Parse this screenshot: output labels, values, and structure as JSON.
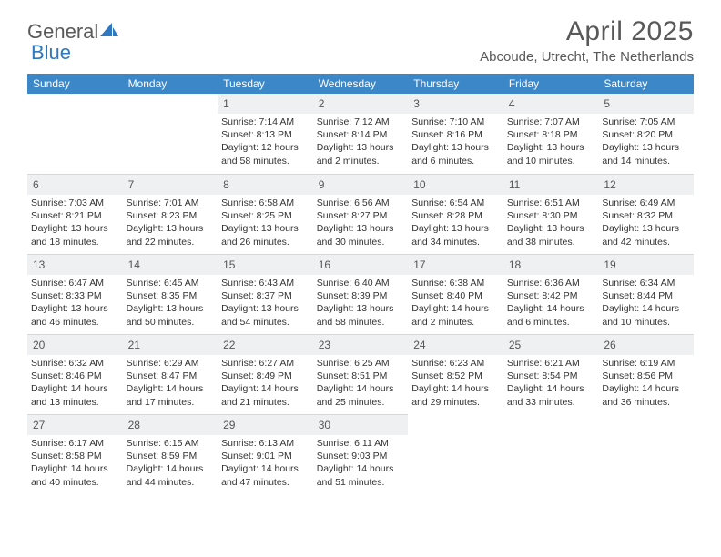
{
  "brand": {
    "text_general": "General",
    "text_blue": "Blue"
  },
  "title": "April 2025",
  "location": "Abcoude, Utrecht, The Netherlands",
  "header_bg": "#3c87c7",
  "daynum_bg": "#eef0f2",
  "weekdays": [
    "Sunday",
    "Monday",
    "Tuesday",
    "Wednesday",
    "Thursday",
    "Friday",
    "Saturday"
  ],
  "start_weekday_index": 2,
  "days": [
    {
      "n": 1,
      "sunrise": "7:14 AM",
      "sunset": "8:13 PM",
      "daylight": "12 hours and 58 minutes."
    },
    {
      "n": 2,
      "sunrise": "7:12 AM",
      "sunset": "8:14 PM",
      "daylight": "13 hours and 2 minutes."
    },
    {
      "n": 3,
      "sunrise": "7:10 AM",
      "sunset": "8:16 PM",
      "daylight": "13 hours and 6 minutes."
    },
    {
      "n": 4,
      "sunrise": "7:07 AM",
      "sunset": "8:18 PM",
      "daylight": "13 hours and 10 minutes."
    },
    {
      "n": 5,
      "sunrise": "7:05 AM",
      "sunset": "8:20 PM",
      "daylight": "13 hours and 14 minutes."
    },
    {
      "n": 6,
      "sunrise": "7:03 AM",
      "sunset": "8:21 PM",
      "daylight": "13 hours and 18 minutes."
    },
    {
      "n": 7,
      "sunrise": "7:01 AM",
      "sunset": "8:23 PM",
      "daylight": "13 hours and 22 minutes."
    },
    {
      "n": 8,
      "sunrise": "6:58 AM",
      "sunset": "8:25 PM",
      "daylight": "13 hours and 26 minutes."
    },
    {
      "n": 9,
      "sunrise": "6:56 AM",
      "sunset": "8:27 PM",
      "daylight": "13 hours and 30 minutes."
    },
    {
      "n": 10,
      "sunrise": "6:54 AM",
      "sunset": "8:28 PM",
      "daylight": "13 hours and 34 minutes."
    },
    {
      "n": 11,
      "sunrise": "6:51 AM",
      "sunset": "8:30 PM",
      "daylight": "13 hours and 38 minutes."
    },
    {
      "n": 12,
      "sunrise": "6:49 AM",
      "sunset": "8:32 PM",
      "daylight": "13 hours and 42 minutes."
    },
    {
      "n": 13,
      "sunrise": "6:47 AM",
      "sunset": "8:33 PM",
      "daylight": "13 hours and 46 minutes."
    },
    {
      "n": 14,
      "sunrise": "6:45 AM",
      "sunset": "8:35 PM",
      "daylight": "13 hours and 50 minutes."
    },
    {
      "n": 15,
      "sunrise": "6:43 AM",
      "sunset": "8:37 PM",
      "daylight": "13 hours and 54 minutes."
    },
    {
      "n": 16,
      "sunrise": "6:40 AM",
      "sunset": "8:39 PM",
      "daylight": "13 hours and 58 minutes."
    },
    {
      "n": 17,
      "sunrise": "6:38 AM",
      "sunset": "8:40 PM",
      "daylight": "14 hours and 2 minutes."
    },
    {
      "n": 18,
      "sunrise": "6:36 AM",
      "sunset": "8:42 PM",
      "daylight": "14 hours and 6 minutes."
    },
    {
      "n": 19,
      "sunrise": "6:34 AM",
      "sunset": "8:44 PM",
      "daylight": "14 hours and 10 minutes."
    },
    {
      "n": 20,
      "sunrise": "6:32 AM",
      "sunset": "8:46 PM",
      "daylight": "14 hours and 13 minutes."
    },
    {
      "n": 21,
      "sunrise": "6:29 AM",
      "sunset": "8:47 PM",
      "daylight": "14 hours and 17 minutes."
    },
    {
      "n": 22,
      "sunrise": "6:27 AM",
      "sunset": "8:49 PM",
      "daylight": "14 hours and 21 minutes."
    },
    {
      "n": 23,
      "sunrise": "6:25 AM",
      "sunset": "8:51 PM",
      "daylight": "14 hours and 25 minutes."
    },
    {
      "n": 24,
      "sunrise": "6:23 AM",
      "sunset": "8:52 PM",
      "daylight": "14 hours and 29 minutes."
    },
    {
      "n": 25,
      "sunrise": "6:21 AM",
      "sunset": "8:54 PM",
      "daylight": "14 hours and 33 minutes."
    },
    {
      "n": 26,
      "sunrise": "6:19 AM",
      "sunset": "8:56 PM",
      "daylight": "14 hours and 36 minutes."
    },
    {
      "n": 27,
      "sunrise": "6:17 AM",
      "sunset": "8:58 PM",
      "daylight": "14 hours and 40 minutes."
    },
    {
      "n": 28,
      "sunrise": "6:15 AM",
      "sunset": "8:59 PM",
      "daylight": "14 hours and 44 minutes."
    },
    {
      "n": 29,
      "sunrise": "6:13 AM",
      "sunset": "9:01 PM",
      "daylight": "14 hours and 47 minutes."
    },
    {
      "n": 30,
      "sunrise": "6:11 AM",
      "sunset": "9:03 PM",
      "daylight": "14 hours and 51 minutes."
    }
  ]
}
